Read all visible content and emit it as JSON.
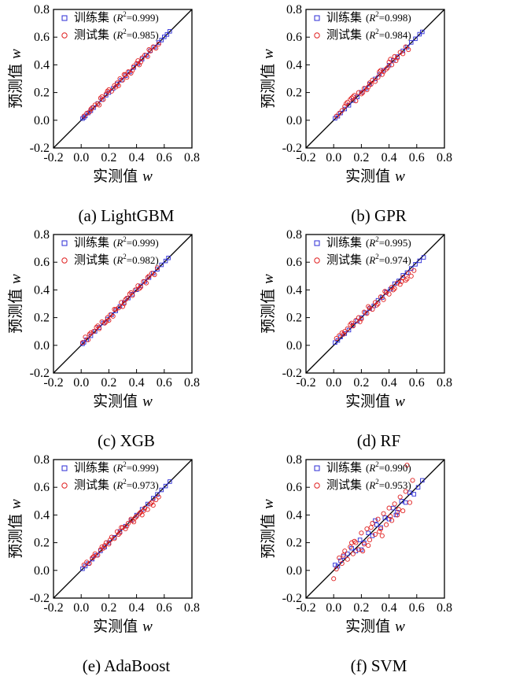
{
  "figure": {
    "captions": [
      "(a) LightGBM",
      "(b) GPR",
      "(c) XGB",
      "(d) RF",
      "(e) AdaBoost",
      "(f) SVM"
    ]
  },
  "chart_data": [
    {
      "type": "scatter",
      "model": "LightGBM",
      "caption": "(a) LightGBM",
      "xlabel": "实测值",
      "ylabel": "预测值",
      "axis_var": "w",
      "xlim": [
        -0.2,
        0.8
      ],
      "ylim": [
        -0.2,
        0.8
      ],
      "ticks": [
        "-0.2",
        "0.0",
        "0.2",
        "0.4",
        "0.6",
        "0.8"
      ],
      "tick_values": [
        -0.2,
        0.0,
        0.2,
        0.4,
        0.6,
        0.8
      ],
      "diagonal": true,
      "legend_position": "top-left",
      "series": [
        {
          "name": "训练集",
          "r2": "0.999",
          "marker": "square",
          "color": "#2b2bd6",
          "x": [
            0.01,
            0.02,
            0.03,
            0.05,
            0.07,
            0.09,
            0.12,
            0.15,
            0.18,
            0.2,
            0.23,
            0.26,
            0.29,
            0.32,
            0.35,
            0.38,
            0.41,
            0.44,
            0.47,
            0.5,
            0.53,
            0.56,
            0.58,
            0.6,
            0.62,
            0.64
          ],
          "y": [
            0.012,
            0.021,
            0.031,
            0.052,
            0.069,
            0.091,
            0.121,
            0.149,
            0.181,
            0.2,
            0.229,
            0.262,
            0.289,
            0.321,
            0.348,
            0.381,
            0.409,
            0.441,
            0.469,
            0.502,
            0.529,
            0.561,
            0.579,
            0.602,
            0.619,
            0.642
          ]
        },
        {
          "name": "测试集",
          "r2": "0.985",
          "marker": "circle",
          "color": "#e02020",
          "x": [
            0.02,
            0.04,
            0.06,
            0.08,
            0.1,
            0.12,
            0.14,
            0.16,
            0.18,
            0.2,
            0.22,
            0.24,
            0.26,
            0.28,
            0.3,
            0.32,
            0.34,
            0.36,
            0.38,
            0.4,
            0.42,
            0.44,
            0.46,
            0.48,
            0.5,
            0.52,
            0.54,
            0.56,
            0.07,
            0.13,
            0.19,
            0.25,
            0.31,
            0.37,
            0.43,
            0.49,
            0.15,
            0.27,
            0.33,
            0.41
          ],
          "y": [
            0.03,
            0.05,
            0.06,
            0.09,
            0.11,
            0.12,
            0.16,
            0.15,
            0.19,
            0.22,
            0.21,
            0.25,
            0.27,
            0.3,
            0.29,
            0.33,
            0.35,
            0.34,
            0.39,
            0.41,
            0.4,
            0.45,
            0.47,
            0.46,
            0.5,
            0.53,
            0.52,
            0.55,
            0.08,
            0.11,
            0.21,
            0.24,
            0.33,
            0.36,
            0.42,
            0.51,
            0.17,
            0.25,
            0.31,
            0.43
          ]
        }
      ]
    },
    {
      "type": "scatter",
      "model": "GPR",
      "caption": "(b) GPR",
      "xlabel": "实测值",
      "ylabel": "预测值",
      "axis_var": "w",
      "xlim": [
        -0.2,
        0.8
      ],
      "ylim": [
        -0.2,
        0.8
      ],
      "ticks": [
        "-0.2",
        "0.0",
        "0.2",
        "0.4",
        "0.6",
        "0.8"
      ],
      "tick_values": [
        -0.2,
        0.0,
        0.2,
        0.4,
        0.6,
        0.8
      ],
      "diagonal": true,
      "legend_position": "top-left",
      "series": [
        {
          "name": "训练集",
          "r2": "0.998",
          "marker": "square",
          "color": "#2b2bd6",
          "x": [
            0.01,
            0.03,
            0.05,
            0.08,
            0.11,
            0.14,
            0.17,
            0.2,
            0.23,
            0.26,
            0.3,
            0.33,
            0.36,
            0.4,
            0.43,
            0.46,
            0.5,
            0.53,
            0.56,
            0.59,
            0.62,
            0.64
          ],
          "y": [
            0.014,
            0.029,
            0.052,
            0.081,
            0.108,
            0.142,
            0.168,
            0.202,
            0.229,
            0.261,
            0.298,
            0.332,
            0.361,
            0.398,
            0.432,
            0.459,
            0.501,
            0.528,
            0.562,
            0.588,
            0.621,
            0.638
          ]
        },
        {
          "name": "测试集",
          "r2": "0.984",
          "marker": "circle",
          "color": "#e02020",
          "x": [
            0.02,
            0.04,
            0.06,
            0.08,
            0.1,
            0.12,
            0.14,
            0.16,
            0.18,
            0.2,
            0.22,
            0.24,
            0.26,
            0.28,
            0.3,
            0.32,
            0.34,
            0.36,
            0.38,
            0.4,
            0.42,
            0.44,
            0.46,
            0.48,
            0.5,
            0.52,
            0.54,
            0.09,
            0.15,
            0.21,
            0.27,
            0.33,
            0.39,
            0.45,
            0.13,
            0.25,
            0.35,
            0.41
          ],
          "y": [
            0.03,
            0.05,
            0.07,
            0.1,
            0.13,
            0.15,
            0.17,
            0.14,
            0.2,
            0.19,
            0.23,
            0.22,
            0.27,
            0.29,
            0.28,
            0.31,
            0.36,
            0.35,
            0.37,
            0.42,
            0.4,
            0.46,
            0.45,
            0.49,
            0.48,
            0.53,
            0.51,
            0.12,
            0.18,
            0.2,
            0.26,
            0.35,
            0.38,
            0.43,
            0.16,
            0.24,
            0.33,
            0.44
          ]
        }
      ]
    },
    {
      "type": "scatter",
      "model": "XGB",
      "caption": "(c) XGB",
      "xlabel": "实测值",
      "ylabel": "预测值",
      "axis_var": "w",
      "xlim": [
        -0.2,
        0.8
      ],
      "ylim": [
        -0.2,
        0.8
      ],
      "ticks": [
        "-0.2",
        "0.0",
        "0.2",
        "0.4",
        "0.6",
        "0.8"
      ],
      "tick_values": [
        -0.2,
        0.0,
        0.2,
        0.4,
        0.6,
        0.8
      ],
      "diagonal": true,
      "legend_position": "top-left",
      "series": [
        {
          "name": "训练集",
          "r2": "0.999",
          "marker": "square",
          "color": "#2b2bd6",
          "x": [
            0.01,
            0.02,
            0.04,
            0.07,
            0.1,
            0.13,
            0.16,
            0.19,
            0.22,
            0.25,
            0.28,
            0.31,
            0.34,
            0.37,
            0.4,
            0.43,
            0.46,
            0.49,
            0.52,
            0.55,
            0.58,
            0.61,
            0.63
          ],
          "y": [
            0.011,
            0.022,
            0.041,
            0.069,
            0.101,
            0.129,
            0.161,
            0.189,
            0.221,
            0.249,
            0.281,
            0.309,
            0.341,
            0.369,
            0.401,
            0.429,
            0.461,
            0.489,
            0.521,
            0.549,
            0.581,
            0.609,
            0.631
          ]
        },
        {
          "name": "测试集",
          "r2": "0.982",
          "marker": "circle",
          "color": "#e02020",
          "x": [
            0.01,
            0.03,
            0.05,
            0.07,
            0.09,
            0.11,
            0.13,
            0.15,
            0.17,
            0.19,
            0.21,
            0.23,
            0.25,
            0.27,
            0.29,
            0.31,
            0.33,
            0.35,
            0.37,
            0.39,
            0.41,
            0.43,
            0.45,
            0.47,
            0.49,
            0.51,
            0.53,
            0.55,
            0.06,
            0.12,
            0.18,
            0.24,
            0.3,
            0.36,
            0.42,
            0.48,
            0.2,
            0.32
          ],
          "y": [
            0.02,
            0.06,
            0.04,
            0.09,
            0.1,
            0.13,
            0.12,
            0.17,
            0.16,
            0.2,
            0.22,
            0.21,
            0.26,
            0.27,
            0.31,
            0.3,
            0.34,
            0.37,
            0.36,
            0.4,
            0.43,
            0.42,
            0.46,
            0.45,
            0.5,
            0.52,
            0.51,
            0.56,
            0.08,
            0.14,
            0.17,
            0.26,
            0.28,
            0.38,
            0.41,
            0.49,
            0.18,
            0.33
          ]
        }
      ]
    },
    {
      "type": "scatter",
      "model": "RF",
      "caption": "(d) RF",
      "xlabel": "实测值",
      "ylabel": "预测值",
      "axis_var": "w",
      "xlim": [
        -0.2,
        0.8
      ],
      "ylim": [
        -0.2,
        0.8
      ],
      "ticks": [
        "-0.2",
        "0.0",
        "0.2",
        "0.4",
        "0.6",
        "0.8"
      ],
      "tick_values": [
        -0.2,
        0.0,
        0.2,
        0.4,
        0.6,
        0.8
      ],
      "diagonal": true,
      "legend_position": "top-left",
      "series": [
        {
          "name": "训练集",
          "r2": "0.995",
          "marker": "square",
          "color": "#2b2bd6",
          "x": [
            0.01,
            0.03,
            0.05,
            0.08,
            0.11,
            0.14,
            0.17,
            0.2,
            0.23,
            0.26,
            0.29,
            0.32,
            0.35,
            0.38,
            0.41,
            0.44,
            0.47,
            0.5,
            0.53,
            0.56,
            0.59,
            0.62,
            0.65
          ],
          "y": [
            0.02,
            0.035,
            0.06,
            0.085,
            0.11,
            0.145,
            0.175,
            0.2,
            0.235,
            0.265,
            0.285,
            0.325,
            0.345,
            0.385,
            0.405,
            0.445,
            0.465,
            0.505,
            0.525,
            0.555,
            0.585,
            0.61,
            0.635
          ]
        },
        {
          "name": "测试集",
          "r2": "0.974",
          "marker": "circle",
          "color": "#e02020",
          "x": [
            0.02,
            0.04,
            0.06,
            0.08,
            0.1,
            0.12,
            0.14,
            0.16,
            0.18,
            0.2,
            0.22,
            0.24,
            0.26,
            0.28,
            0.3,
            0.32,
            0.34,
            0.36,
            0.38,
            0.4,
            0.42,
            0.44,
            0.46,
            0.48,
            0.5,
            0.52,
            0.54,
            0.56,
            0.58,
            0.07,
            0.13,
            0.19,
            0.25,
            0.31,
            0.37,
            0.43,
            0.49,
            0.53
          ],
          "y": [
            0.05,
            0.07,
            0.09,
            0.1,
            0.12,
            0.15,
            0.14,
            0.18,
            0.2,
            0.19,
            0.24,
            0.23,
            0.27,
            0.26,
            0.31,
            0.3,
            0.35,
            0.33,
            0.38,
            0.37,
            0.42,
            0.41,
            0.45,
            0.44,
            0.49,
            0.47,
            0.52,
            0.5,
            0.54,
            0.08,
            0.16,
            0.17,
            0.28,
            0.29,
            0.39,
            0.4,
            0.46,
            0.48
          ]
        }
      ]
    },
    {
      "type": "scatter",
      "model": "AdaBoost",
      "caption": "(e) AdaBoost",
      "xlabel": "实测值",
      "ylabel": "预测值",
      "axis_var": "w",
      "xlim": [
        -0.2,
        0.8
      ],
      "ylim": [
        -0.2,
        0.8
      ],
      "ticks": [
        "-0.2",
        "0.0",
        "0.2",
        "0.4",
        "0.6",
        "0.8"
      ],
      "tick_values": [
        -0.2,
        0.0,
        0.2,
        0.4,
        0.6,
        0.8
      ],
      "diagonal": true,
      "legend_position": "top-left",
      "series": [
        {
          "name": "训练集",
          "r2": "0.999",
          "marker": "square",
          "color": "#2b2bd6",
          "x": [
            0.01,
            0.03,
            0.05,
            0.08,
            0.11,
            0.14,
            0.17,
            0.2,
            0.24,
            0.28,
            0.32,
            0.36,
            0.4,
            0.44,
            0.48,
            0.52,
            0.55,
            0.58,
            0.61,
            0.64
          ],
          "y": [
            0.012,
            0.031,
            0.049,
            0.081,
            0.109,
            0.141,
            0.169,
            0.201,
            0.239,
            0.281,
            0.319,
            0.361,
            0.399,
            0.441,
            0.479,
            0.521,
            0.549,
            0.581,
            0.609,
            0.641
          ]
        },
        {
          "name": "测试集",
          "r2": "0.973",
          "marker": "circle",
          "color": "#e02020",
          "x": [
            0.02,
            0.04,
            0.06,
            0.08,
            0.1,
            0.12,
            0.14,
            0.16,
            0.18,
            0.2,
            0.22,
            0.24,
            0.26,
            0.28,
            0.3,
            0.32,
            0.34,
            0.36,
            0.38,
            0.4,
            0.42,
            0.44,
            0.46,
            0.48,
            0.5,
            0.52,
            0.54,
            0.56,
            0.09,
            0.15,
            0.21,
            0.27,
            0.33,
            0.39,
            0.45,
            0.51,
            0.17,
            0.29,
            0.37,
            0.43
          ],
          "y": [
            0.04,
            0.06,
            0.05,
            0.09,
            0.12,
            0.11,
            0.15,
            0.16,
            0.2,
            0.19,
            0.24,
            0.23,
            0.28,
            0.27,
            0.31,
            0.3,
            0.34,
            0.37,
            0.35,
            0.39,
            0.41,
            0.4,
            0.45,
            0.44,
            0.48,
            0.47,
            0.51,
            0.53,
            0.1,
            0.17,
            0.22,
            0.26,
            0.32,
            0.38,
            0.43,
            0.49,
            0.18,
            0.31,
            0.36,
            0.42
          ]
        }
      ]
    },
    {
      "type": "scatter",
      "model": "SVM",
      "caption": "(f) SVM",
      "xlabel": "实测值",
      "ylabel": "预测值",
      "axis_var": "w",
      "xlim": [
        -0.2,
        0.8
      ],
      "ylim": [
        -0.2,
        0.8
      ],
      "ticks": [
        "-0.2",
        "0.0",
        "0.2",
        "0.4",
        "0.6",
        "0.8"
      ],
      "tick_values": [
        -0.2,
        0.0,
        0.2,
        0.4,
        0.6,
        0.8
      ],
      "diagonal": true,
      "legend_position": "top-left",
      "series": [
        {
          "name": "训练集",
          "r2": "0.990",
          "marker": "square",
          "color": "#2b2bd6",
          "x": [
            0.01,
            0.03,
            0.05,
            0.07,
            0.1,
            0.13,
            0.16,
            0.19,
            0.22,
            0.25,
            0.28,
            0.31,
            0.34,
            0.37,
            0.4,
            0.43,
            0.46,
            0.49,
            0.52,
            0.55,
            0.58,
            0.61,
            0.64,
            0.2,
            0.3,
            0.45
          ],
          "y": [
            0.04,
            0.03,
            0.07,
            0.1,
            0.12,
            0.16,
            0.14,
            0.22,
            0.2,
            0.27,
            0.25,
            0.33,
            0.31,
            0.38,
            0.37,
            0.45,
            0.42,
            0.5,
            0.49,
            0.56,
            0.55,
            0.6,
            0.65,
            0.15,
            0.36,
            0.4
          ]
        },
        {
          "name": "测试集",
          "r2": "0.953",
          "marker": "circle",
          "color": "#e02020",
          "x": [
            0.0,
            0.02,
            0.04,
            0.06,
            0.08,
            0.1,
            0.12,
            0.14,
            0.16,
            0.18,
            0.2,
            0.22,
            0.24,
            0.26,
            0.28,
            0.3,
            0.32,
            0.34,
            0.36,
            0.38,
            0.4,
            0.42,
            0.44,
            0.46,
            0.48,
            0.5,
            0.52,
            0.53,
            0.55,
            0.57,
            0.07,
            0.13,
            0.21,
            0.27,
            0.33,
            0.41,
            0.47,
            0.35,
            0.25,
            0.15
          ],
          "y": [
            -0.06,
            0.01,
            0.09,
            0.05,
            0.14,
            0.08,
            0.17,
            0.12,
            0.2,
            0.15,
            0.27,
            0.19,
            0.3,
            0.22,
            0.34,
            0.26,
            0.37,
            0.3,
            0.41,
            0.33,
            0.45,
            0.36,
            0.48,
            0.4,
            0.53,
            0.43,
            0.57,
            0.76,
            0.49,
            0.65,
            0.11,
            0.2,
            0.14,
            0.31,
            0.28,
            0.39,
            0.44,
            0.25,
            0.18,
            0.21
          ]
        }
      ]
    }
  ]
}
